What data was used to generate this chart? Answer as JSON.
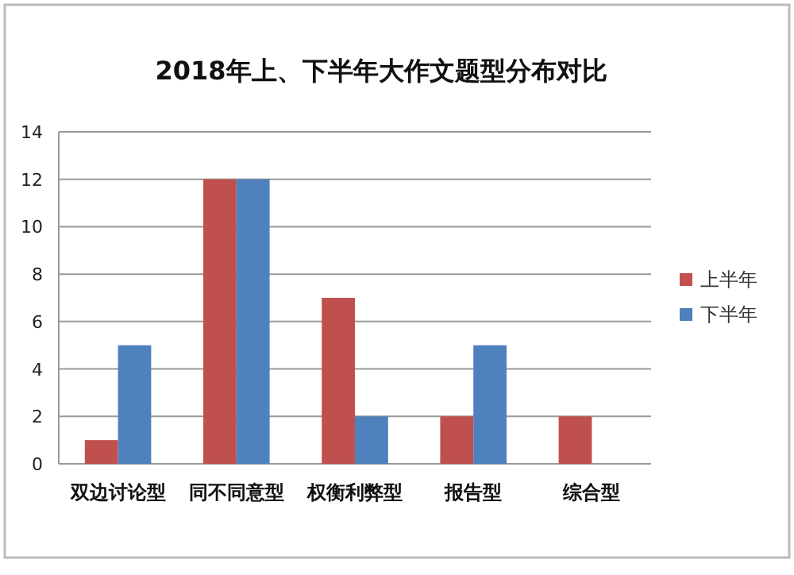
{
  "chart_data": {
    "type": "bar",
    "title": "2018年上、下半年大作文题型分布对比",
    "categories": [
      "双边讨论型",
      "同不同意型",
      "权衡利弊型",
      "报告型",
      "综合型"
    ],
    "series": [
      {
        "name": "上半年",
        "color": "#c0504d",
        "values": [
          1,
          12,
          7,
          2,
          2
        ]
      },
      {
        "name": "下半年",
        "color": "#4f81bd",
        "values": [
          5,
          12,
          2,
          5,
          0
        ]
      }
    ],
    "ylim": [
      0,
      14
    ],
    "yticks": [
      0,
      2,
      4,
      6,
      8,
      10,
      12,
      14
    ],
    "grid": "y",
    "legend": "right"
  }
}
